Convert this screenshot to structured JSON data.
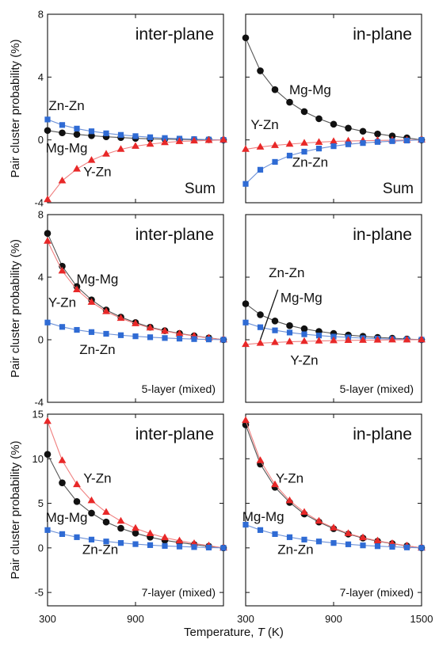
{
  "figure": {
    "ylabel": "Pair cluster probability (%)",
    "xlabel_text": "Temperature, ",
    "xlabel_var": "T",
    "xlabel_unit": " (K)"
  },
  "colors": {
    "Mg-Mg": "#111111",
    "Zn-Zn": "#2f5fb8",
    "Y-Zn": "#e02020"
  },
  "chart_data": [
    {
      "type": "line",
      "title": "inter-plane",
      "corner_label": "Sum",
      "xlim": [
        300,
        1500
      ],
      "xticks": [
        300,
        900
      ],
      "ylim": [
        -4,
        8
      ],
      "yticks": [
        -4,
        0,
        4,
        8
      ],
      "x": [
        300,
        400,
        500,
        600,
        700,
        800,
        900,
        1000,
        1100,
        1200,
        1300,
        1400,
        1500
      ],
      "series": [
        {
          "name": "Mg-Mg",
          "marker": "circle",
          "values": [
            0.6,
            0.45,
            0.35,
            0.27,
            0.2,
            0.15,
            0.1,
            0.07,
            0.05,
            0.03,
            0.02,
            0.01,
            0.0
          ]
        },
        {
          "name": "Zn-Zn",
          "marker": "square",
          "values": [
            1.3,
            0.95,
            0.72,
            0.55,
            0.42,
            0.32,
            0.24,
            0.17,
            0.12,
            0.08,
            0.05,
            0.02,
            0.0
          ]
        },
        {
          "name": "Y-Zn",
          "marker": "triangle",
          "values": [
            -3.8,
            -2.6,
            -1.85,
            -1.3,
            -0.9,
            -0.6,
            -0.4,
            -0.27,
            -0.17,
            -0.1,
            -0.06,
            -0.03,
            0.0
          ]
        }
      ],
      "labels": [
        {
          "text": "Zn-Zn",
          "x": 430,
          "y": 1.9
        },
        {
          "text": "Mg-Mg",
          "x": 430,
          "y": -0.8
        },
        {
          "text": "Y-Zn",
          "x": 640,
          "y": -2.3
        }
      ]
    },
    {
      "type": "line",
      "title": "in-plane",
      "corner_label": "Sum",
      "xlim": [
        300,
        1500
      ],
      "xticks": [
        300,
        900,
        1500
      ],
      "ylim": [
        -4,
        8
      ],
      "yticks": [
        -4,
        0,
        4,
        8
      ],
      "x": [
        300,
        400,
        500,
        600,
        700,
        800,
        900,
        1000,
        1100,
        1200,
        1300,
        1400,
        1500
      ],
      "series": [
        {
          "name": "Mg-Mg",
          "marker": "circle",
          "values": [
            6.5,
            4.4,
            3.2,
            2.4,
            1.8,
            1.35,
            1.0,
            0.75,
            0.55,
            0.38,
            0.25,
            0.13,
            0.0
          ]
        },
        {
          "name": "Y-Zn",
          "marker": "triangle",
          "values": [
            -0.6,
            -0.45,
            -0.35,
            -0.27,
            -0.2,
            -0.15,
            -0.1,
            -0.07,
            -0.05,
            -0.03,
            -0.02,
            -0.01,
            0.0
          ]
        },
        {
          "name": "Zn-Zn",
          "marker": "square",
          "values": [
            -2.8,
            -1.9,
            -1.4,
            -1.0,
            -0.75,
            -0.55,
            -0.4,
            -0.28,
            -0.2,
            -0.13,
            -0.08,
            -0.04,
            0.0
          ]
        }
      ],
      "labels": [
        {
          "text": "Mg-Mg",
          "x": 740,
          "y": 2.9
        },
        {
          "text": "Y-Zn",
          "x": 430,
          "y": 0.7
        },
        {
          "text": "Zn-Zn",
          "x": 740,
          "y": -1.7
        }
      ]
    },
    {
      "type": "line",
      "title": "inter-plane",
      "corner_label": "5-layer (mixed)",
      "xlim": [
        300,
        1500
      ],
      "xticks": [
        300,
        900
      ],
      "ylim": [
        -4,
        8
      ],
      "yticks": [
        -4,
        0,
        4,
        8
      ],
      "x": [
        300,
        400,
        500,
        600,
        700,
        800,
        900,
        1000,
        1100,
        1200,
        1300,
        1400,
        1500
      ],
      "series": [
        {
          "name": "Mg-Mg",
          "marker": "circle",
          "values": [
            6.8,
            4.7,
            3.4,
            2.55,
            1.9,
            1.45,
            1.1,
            0.8,
            0.58,
            0.4,
            0.25,
            0.12,
            0.0
          ]
        },
        {
          "name": "Y-Zn",
          "marker": "triangle",
          "values": [
            6.3,
            4.4,
            3.2,
            2.4,
            1.8,
            1.37,
            1.03,
            0.76,
            0.55,
            0.38,
            0.24,
            0.11,
            0.0
          ]
        },
        {
          "name": "Zn-Zn",
          "marker": "square",
          "values": [
            1.1,
            0.82,
            0.63,
            0.49,
            0.38,
            0.29,
            0.22,
            0.16,
            0.11,
            0.07,
            0.04,
            0.02,
            0.0
          ]
        }
      ],
      "labels": [
        {
          "text": "Mg-Mg",
          "x": 640,
          "y": 3.6
        },
        {
          "text": "Y-Zn",
          "x": 400,
          "y": 2.1
        },
        {
          "text": "Zn-Zn",
          "x": 640,
          "y": -0.9
        }
      ]
    },
    {
      "type": "line",
      "title": "in-plane",
      "corner_label": "5-layer (mixed)",
      "xlim": [
        300,
        1500
      ],
      "xticks": [
        300,
        900,
        1500
      ],
      "ylim": [
        -4,
        8
      ],
      "yticks": [
        -4,
        0,
        4,
        8
      ],
      "x": [
        300,
        400,
        500,
        600,
        700,
        800,
        900,
        1000,
        1100,
        1200,
        1300,
        1400,
        1500
      ],
      "series": [
        {
          "name": "Mg-Mg",
          "marker": "circle",
          "values": [
            2.3,
            1.6,
            1.2,
            0.9,
            0.7,
            0.53,
            0.4,
            0.3,
            0.22,
            0.15,
            0.1,
            0.05,
            0.0
          ]
        },
        {
          "name": "Zn-Zn",
          "marker": "square",
          "values": [
            1.1,
            0.8,
            0.6,
            0.46,
            0.35,
            0.27,
            0.2,
            0.15,
            0.1,
            0.07,
            0.04,
            0.02,
            0.0
          ]
        },
        {
          "name": "Y-Zn",
          "marker": "triangle",
          "values": [
            -0.3,
            -0.22,
            -0.17,
            -0.13,
            -0.1,
            -0.08,
            -0.06,
            -0.04,
            -0.03,
            -0.02,
            -0.01,
            -0.005,
            0.0
          ]
        }
      ],
      "labels": [
        {
          "text": "Zn-Zn",
          "x": 580,
          "y": 4.0
        },
        {
          "text": "Mg-Mg",
          "x": 680,
          "y": 2.4
        },
        {
          "text": "Y-Zn",
          "x": 700,
          "y": -1.6
        }
      ]
    },
    {
      "type": "line",
      "title": "inter-plane",
      "corner_label": "7-layer (mixed)",
      "xlim": [
        300,
        1500
      ],
      "xticks": [
        300,
        900
      ],
      "ylim": [
        -6.5,
        15
      ],
      "yticks": [
        -5,
        0,
        5,
        10,
        15
      ],
      "x": [
        300,
        400,
        500,
        600,
        700,
        800,
        900,
        1000,
        1100,
        1200,
        1300,
        1400,
        1500
      ],
      "series": [
        {
          "name": "Mg-Mg",
          "marker": "circle",
          "values": [
            10.5,
            7.3,
            5.2,
            3.9,
            2.9,
            2.2,
            1.65,
            1.2,
            0.85,
            0.6,
            0.38,
            0.18,
            0.0
          ]
        },
        {
          "name": "Y-Zn",
          "marker": "triangle",
          "values": [
            14.2,
            9.8,
            7.1,
            5.3,
            4.0,
            3.0,
            2.2,
            1.6,
            1.15,
            0.8,
            0.5,
            0.24,
            0.0
          ]
        },
        {
          "name": "Zn-Zn",
          "marker": "square",
          "values": [
            2.0,
            1.55,
            1.2,
            0.93,
            0.72,
            0.55,
            0.42,
            0.31,
            0.22,
            0.15,
            0.09,
            0.04,
            0.0
          ]
        }
      ],
      "labels": [
        {
          "text": "Y-Zn",
          "x": 640,
          "y": 7.3
        },
        {
          "text": "Mg-Mg",
          "x": 430,
          "y": 2.9
        },
        {
          "text": "Zn-Zn",
          "x": 660,
          "y": -0.7
        }
      ]
    },
    {
      "type": "line",
      "title": "in-plane",
      "corner_label": "7-layer (mixed)",
      "xlim": [
        300,
        1500
      ],
      "xticks": [
        300,
        900,
        1500
      ],
      "ylim": [
        -6.5,
        15
      ],
      "yticks": [
        -5,
        0,
        5,
        10,
        15
      ],
      "x": [
        300,
        400,
        500,
        600,
        700,
        800,
        900,
        1000,
        1100,
        1200,
        1300,
        1400,
        1500
      ],
      "series": [
        {
          "name": "Mg-Mg",
          "marker": "circle",
          "values": [
            13.8,
            9.4,
            6.8,
            5.1,
            3.8,
            2.9,
            2.15,
            1.55,
            1.1,
            0.75,
            0.48,
            0.22,
            0.0
          ]
        },
        {
          "name": "Y-Zn",
          "marker": "triangle",
          "values": [
            14.3,
            9.8,
            7.1,
            5.3,
            4.0,
            3.0,
            2.25,
            1.62,
            1.15,
            0.79,
            0.5,
            0.23,
            0.0
          ]
        },
        {
          "name": "Zn-Zn",
          "marker": "square",
          "values": [
            2.6,
            2.0,
            1.55,
            1.2,
            0.93,
            0.72,
            0.55,
            0.4,
            0.28,
            0.19,
            0.12,
            0.05,
            0.0
          ]
        }
      ],
      "labels": [
        {
          "text": "Y-Zn",
          "x": 600,
          "y": 7.3
        },
        {
          "text": "Mg-Mg",
          "x": 420,
          "y": 3.0
        },
        {
          "text": "Zn-Zn",
          "x": 640,
          "y": -0.7
        }
      ]
    }
  ]
}
